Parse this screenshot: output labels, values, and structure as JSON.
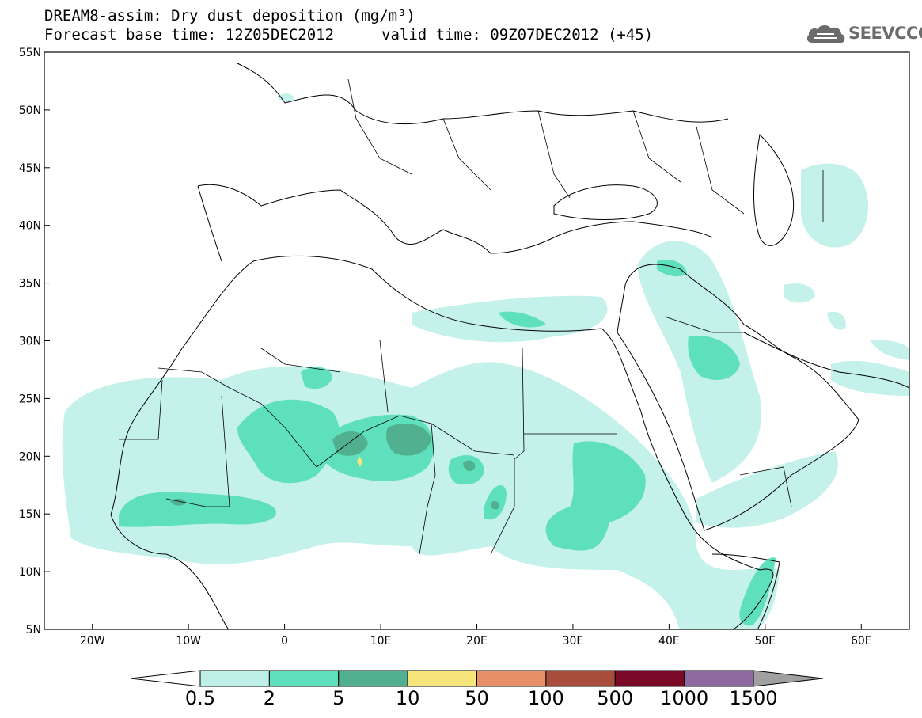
{
  "header": {
    "title": "DREAM8-assim: Dry dust deposition (mg/m³)",
    "base_time": "Forecast base time: 12Z05DEC2012",
    "valid_time": "valid time: 09Z07DEC2012 (+45)"
  },
  "logo": {
    "text": "SEEVCCC",
    "icon": "cloud-icon"
  },
  "map": {
    "lon_range": [
      -25,
      65
    ],
    "lat_range": [
      5,
      55
    ],
    "lon_ticks": [
      {
        "value": -20,
        "label": "20W"
      },
      {
        "value": -10,
        "label": "10W"
      },
      {
        "value": 0,
        "label": "0"
      },
      {
        "value": 10,
        "label": "10E"
      },
      {
        "value": 20,
        "label": "20E"
      },
      {
        "value": 30,
        "label": "30E"
      },
      {
        "value": 40,
        "label": "40E"
      },
      {
        "value": 50,
        "label": "50E"
      },
      {
        "value": 60,
        "label": "60E"
      }
    ],
    "lat_ticks": [
      {
        "value": 5,
        "label": "5N"
      },
      {
        "value": 10,
        "label": "10N"
      },
      {
        "value": 15,
        "label": "15N"
      },
      {
        "value": 20,
        "label": "20N"
      },
      {
        "value": 25,
        "label": "25N"
      },
      {
        "value": 30,
        "label": "30N"
      },
      {
        "value": 35,
        "label": "35N"
      },
      {
        "value": 40,
        "label": "40N"
      },
      {
        "value": 45,
        "label": "45N"
      },
      {
        "value": 50,
        "label": "50N"
      },
      {
        "value": 55,
        "label": "55N"
      }
    ]
  },
  "colorbar": {
    "colors": [
      "#ffffff",
      "#bff0e8",
      "#5ee0bc",
      "#50b090",
      "#f5e57a",
      "#e89068",
      "#a84c3c",
      "#7a0a28",
      "#8e6aa0",
      "#a0a0a0"
    ],
    "labels": [
      "0.5",
      "2",
      "5",
      "10",
      "50",
      "100",
      "500",
      "1000",
      "1500"
    ]
  }
}
